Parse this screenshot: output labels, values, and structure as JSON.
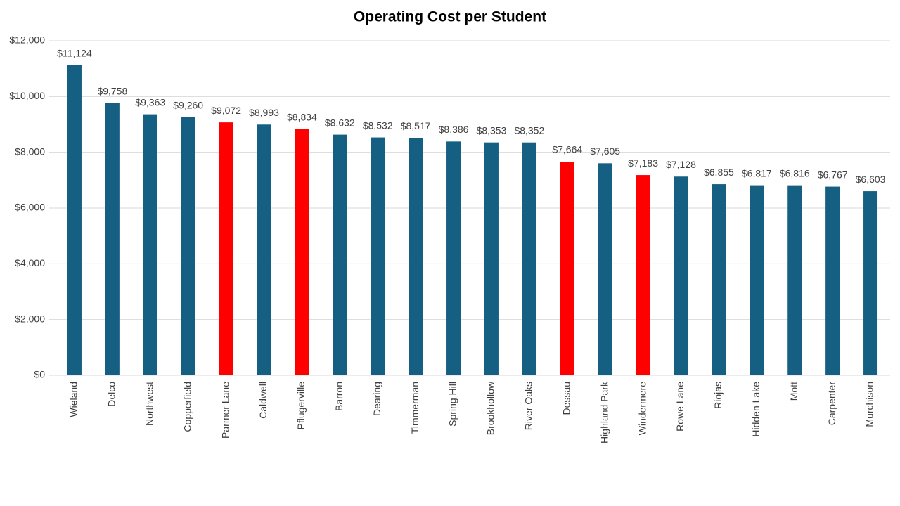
{
  "chart_data": {
    "type": "bar",
    "title": "Operating Cost per Student",
    "categories": [
      "Wieland",
      "Delco",
      "Northwest",
      "Copperfield",
      "Parmer Lane",
      "Caldwell",
      "Pflugerville",
      "Barron",
      "Dearing",
      "Timmerman",
      "Spring Hill",
      "Brookhollow",
      "River Oaks",
      "Dessau",
      "Highland Park",
      "Windermere",
      "Rowe Lane",
      "Riojas",
      "Hidden Lake",
      "Mott",
      "Carpenter",
      "Murchison"
    ],
    "values": [
      11124,
      9758,
      9363,
      9260,
      9072,
      8993,
      8834,
      8632,
      8532,
      8517,
      8386,
      8353,
      8352,
      7664,
      7605,
      7183,
      7128,
      6855,
      6817,
      6816,
      6767,
      6603
    ],
    "value_labels": [
      "$11,124",
      "$9,758",
      "$9,363",
      "$9,260",
      "$9,072",
      "$8,993",
      "$8,834",
      "$8,632",
      "$8,532",
      "$8,517",
      "$8,386",
      "$8,353",
      "$8,352",
      "$7,664",
      "$7,605",
      "$7,183",
      "$7,128",
      "$6,855",
      "$6,817",
      "$6,816",
      "$6,767",
      "$6,603"
    ],
    "colors": [
      "#145f82",
      "#145f82",
      "#145f82",
      "#145f82",
      "#ff0000",
      "#145f82",
      "#ff0000",
      "#145f82",
      "#145f82",
      "#145f82",
      "#145f82",
      "#145f82",
      "#145f82",
      "#ff0000",
      "#145f82",
      "#ff0000",
      "#145f82",
      "#145f82",
      "#145f82",
      "#145f82",
      "#145f82",
      "#145f82"
    ],
    "ylim": [
      0,
      12000
    ],
    "yticks": [
      {
        "value": 0,
        "label": "$0"
      },
      {
        "value": 2000,
        "label": "$2,000"
      },
      {
        "value": 4000,
        "label": "$4,000"
      },
      {
        "value": 6000,
        "label": "$6,000"
      },
      {
        "value": 8000,
        "label": "$8,000"
      },
      {
        "value": 10000,
        "label": "$10,000"
      },
      {
        "value": 12000,
        "label": "$12,000"
      }
    ],
    "grid": true
  }
}
